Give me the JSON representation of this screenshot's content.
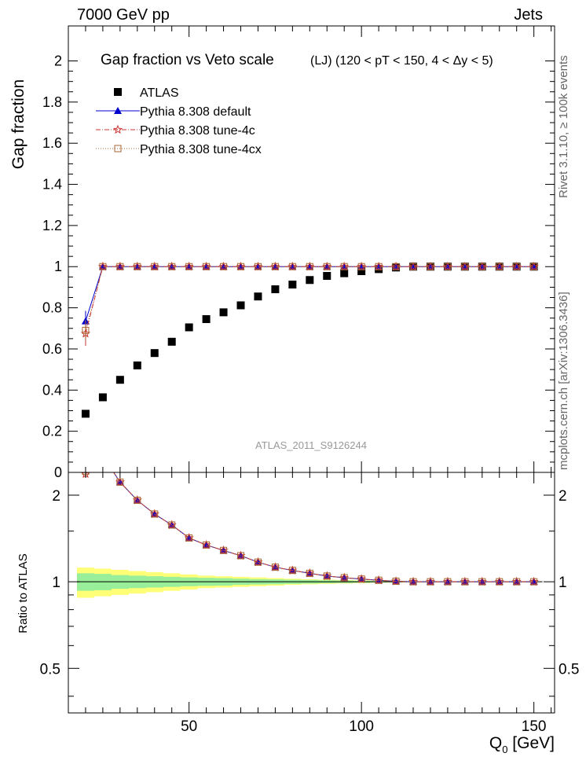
{
  "header": {
    "energy_label": "7000 GeV pp",
    "category_label": "Jets"
  },
  "side_labels": {
    "rivet": "Rivet 3.1.10, ≥ 100k events",
    "mcplots": "mcplots.cern.ch [arXiv:1306.3436]"
  },
  "chart_data": [
    {
      "type": "scatter",
      "panel": "main",
      "title": "Gap fraction vs Veto scale",
      "subtitle": "(LJ) (120 < pT < 150, 4 < Δy < 5)",
      "ylabel": "Gap fraction",
      "xlabel": "",
      "analysis_label": "ATLAS_2011_S9126244",
      "xlim": [
        15,
        156
      ],
      "ylim": [
        0,
        2.17
      ],
      "yticks": [
        0,
        0.2,
        0.4,
        0.6,
        0.8,
        1,
        1.2,
        1.4,
        1.6,
        1.8,
        2
      ],
      "ytick_labels": [
        "0",
        "0.2",
        "0.4",
        "0.6",
        "0.8",
        "1",
        "1.2",
        "1.4",
        "1.6",
        "1.8",
        "2"
      ],
      "legend_position": "top-left",
      "x": [
        20,
        25,
        30,
        35,
        40,
        45,
        50,
        55,
        60,
        65,
        70,
        75,
        80,
        85,
        90,
        95,
        100,
        105,
        110,
        115,
        120,
        125,
        130,
        135,
        140,
        145,
        150
      ],
      "series": [
        {
          "name": "ATLAS",
          "color": "#000000",
          "marker": "square",
          "values": [
            0.285,
            0.365,
            0.45,
            0.52,
            0.58,
            0.635,
            0.705,
            0.745,
            0.778,
            0.812,
            0.855,
            0.89,
            0.913,
            0.935,
            0.955,
            0.968,
            0.978,
            0.988,
            0.996,
            1.0,
            1.0,
            1.0,
            1.0,
            1.0,
            1.0,
            1.0,
            1.0
          ]
        },
        {
          "name": "Pythia 8.308 default",
          "color": "#0000cc",
          "marker": "triangle",
          "values": [
            0.735,
            1.0,
            1.0,
            1.0,
            1.0,
            1.0,
            1.0,
            1.0,
            1.0,
            1.0,
            1.0,
            1.0,
            1.0,
            1.0,
            1.0,
            1.0,
            1.0,
            1.0,
            1.0,
            1.0,
            1.0,
            1.0,
            1.0,
            1.0,
            1.0,
            1.0,
            1.0
          ],
          "errors": [
            0.05,
            0,
            0,
            0,
            0,
            0,
            0,
            0,
            0,
            0,
            0,
            0,
            0,
            0,
            0,
            0,
            0,
            0,
            0,
            0,
            0,
            0,
            0,
            0,
            0,
            0,
            0
          ]
        },
        {
          "name": "Pythia 8.308 tune-4c",
          "color": "#cc3333",
          "marker": "star",
          "values": [
            0.675,
            1.0,
            1.0,
            1.0,
            1.0,
            1.0,
            1.0,
            1.0,
            1.0,
            1.0,
            1.0,
            1.0,
            1.0,
            1.0,
            1.0,
            1.0,
            1.0,
            1.0,
            1.0,
            1.0,
            1.0,
            1.0,
            1.0,
            1.0,
            1.0,
            1.0,
            1.0
          ],
          "errors": [
            0.06,
            0,
            0,
            0,
            0,
            0,
            0,
            0,
            0,
            0,
            0,
            0,
            0,
            0,
            0,
            0,
            0,
            0,
            0,
            0,
            0,
            0,
            0,
            0,
            0,
            0,
            0
          ]
        },
        {
          "name": "Pythia 8.308 tune-4cx",
          "color": "#aa6633",
          "marker": "open-square",
          "values": [
            0.69,
            1.0,
            1.0,
            1.0,
            1.0,
            1.0,
            1.0,
            1.0,
            1.0,
            1.0,
            1.0,
            1.0,
            1.0,
            1.0,
            1.0,
            1.0,
            1.0,
            1.0,
            1.0,
            1.0,
            1.0,
            1.0,
            1.0,
            1.0,
            1.0,
            1.0,
            1.0
          ],
          "errors": [
            0.05,
            0,
            0,
            0,
            0,
            0,
            0,
            0,
            0,
            0,
            0,
            0,
            0,
            0,
            0,
            0,
            0,
            0,
            0,
            0,
            0,
            0,
            0,
            0,
            0,
            0,
            0
          ]
        }
      ]
    },
    {
      "type": "line",
      "panel": "ratio",
      "ylabel": "Ratio to ATLAS",
      "xlabel": "Q",
      "xlabel_sub": "0",
      "xlabel_unit": " [GeV]",
      "xlim": [
        15,
        156
      ],
      "ylim": [
        0.35,
        2.4
      ],
      "log_y": true,
      "xticks": [
        50,
        100,
        150
      ],
      "xtick_labels": [
        "50",
        "100",
        "150"
      ],
      "yticks": [
        0.5,
        1,
        2
      ],
      "ytick_labels": [
        "0.5",
        "1",
        "2"
      ],
      "x": [
        20,
        25,
        30,
        35,
        40,
        45,
        50,
        55,
        60,
        65,
        70,
        75,
        80,
        85,
        90,
        95,
        100,
        105,
        110,
        115,
        120,
        125,
        130,
        135,
        140,
        145,
        150
      ],
      "band_inner_halfwidth": [
        0.07,
        0.065,
        0.055,
        0.05,
        0.045,
        0.04,
        0.035,
        0.032,
        0.03,
        0.025,
        0.022,
        0.02,
        0.017,
        0.015,
        0.012,
        0.01,
        0.008,
        0.006,
        0.004,
        0.002,
        0.001,
        0.001,
        0.001,
        0.001,
        0.001,
        0.001,
        0.001
      ],
      "band_outer_halfwidth": [
        0.12,
        0.11,
        0.1,
        0.09,
        0.08,
        0.07,
        0.06,
        0.05,
        0.045,
        0.04,
        0.035,
        0.03,
        0.025,
        0.02,
        0.017,
        0.014,
        0.011,
        0.008,
        0.006,
        0.004,
        0.002,
        0.002,
        0.002,
        0.002,
        0.002,
        0.002,
        0.002
      ],
      "band_colors": {
        "inner": "#99ee99",
        "outer": "#ffff77"
      },
      "series": [
        {
          "name": "Pythia 8.308 default",
          "color": "#0000cc",
          "marker": "triangle",
          "values": [
            2.58,
            2.74,
            2.22,
            1.92,
            1.72,
            1.575,
            1.42,
            1.342,
            1.285,
            1.232,
            1.17,
            1.124,
            1.095,
            1.07,
            1.047,
            1.033,
            1.022,
            1.012,
            1.004,
            1.0,
            1.0,
            1.0,
            1.0,
            1.0,
            1.0,
            1.0,
            1.0
          ]
        },
        {
          "name": "Pythia 8.308 tune-4c",
          "color": "#cc3333",
          "marker": "star",
          "values": [
            2.37,
            2.74,
            2.22,
            1.92,
            1.72,
            1.575,
            1.42,
            1.342,
            1.285,
            1.232,
            1.17,
            1.124,
            1.095,
            1.07,
            1.047,
            1.033,
            1.022,
            1.012,
            1.004,
            1.0,
            1.0,
            1.0,
            1.0,
            1.0,
            1.0,
            1.0,
            1.0
          ]
        },
        {
          "name": "Pythia 8.308 tune-4cx",
          "color": "#aa6633",
          "marker": "open-square",
          "values": [
            2.42,
            2.74,
            2.22,
            1.92,
            1.72,
            1.575,
            1.42,
            1.342,
            1.285,
            1.232,
            1.17,
            1.124,
            1.095,
            1.07,
            1.047,
            1.033,
            1.022,
            1.012,
            1.004,
            1.0,
            1.0,
            1.0,
            1.0,
            1.0,
            1.0,
            1.0,
            1.0
          ]
        }
      ]
    }
  ]
}
